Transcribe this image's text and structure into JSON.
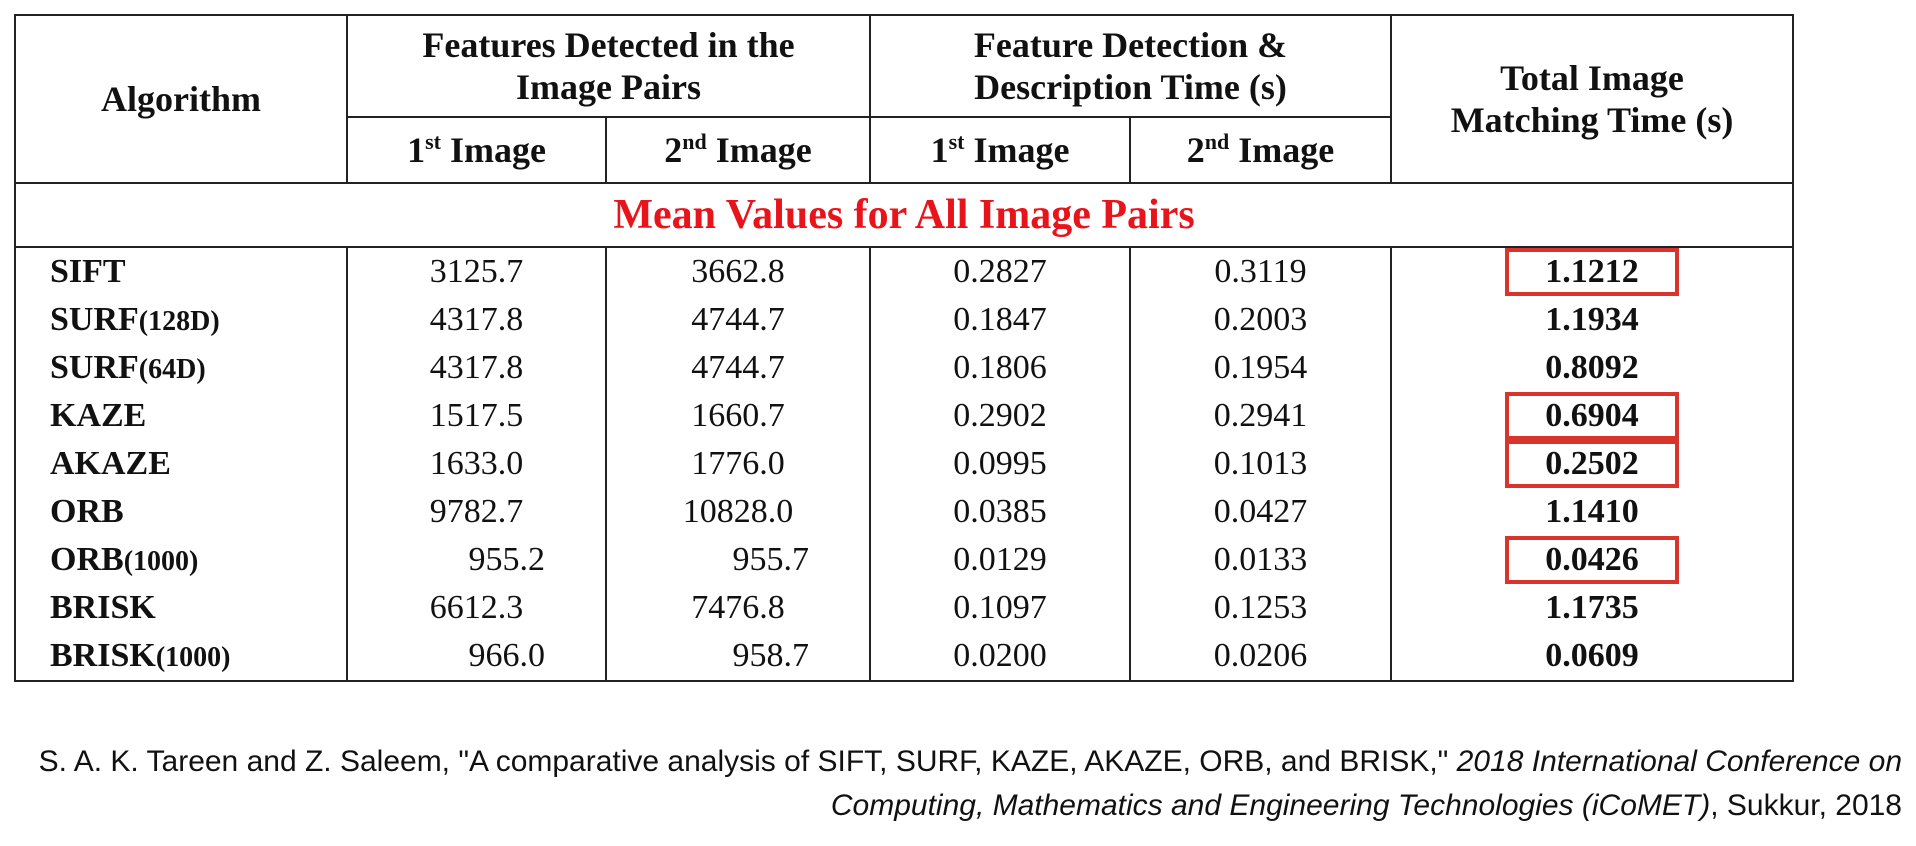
{
  "table": {
    "headers": {
      "algorithm": "Algorithm",
      "features_group": "Features Detected in the Image Pairs",
      "time_group": "Feature Detection & Description Time (s)",
      "total": "Total Image Matching Time (s)",
      "sub_1_num": "1",
      "sub_1_sup": "st",
      "sub_2_num": "2",
      "sub_2_sup": "nd",
      "sub_label": " Image"
    },
    "section_label": "Mean Values for All Image Pairs",
    "rows": [
      {
        "name": "SIFT",
        "suffix": "",
        "f1": "3125.7",
        "f2": "3662.8",
        "t1": "0.2827",
        "t2": "0.3119",
        "total": "1.1212",
        "highlight": true
      },
      {
        "name": "SURF",
        "suffix": "(128D)",
        "f1": "4317.8",
        "f2": "4744.7",
        "t1": "0.1847",
        "t2": "0.2003",
        "total": "1.1934",
        "highlight": false
      },
      {
        "name": "SURF",
        "suffix": "(64D)",
        "f1": "4317.8",
        "f2": "4744.7",
        "t1": "0.1806",
        "t2": "0.1954",
        "total": "0.8092",
        "highlight": false
      },
      {
        "name": "KAZE",
        "suffix": "",
        "f1": "1517.5",
        "f2": "1660.7",
        "t1": "0.2902",
        "t2": "0.2941",
        "total": "0.6904",
        "highlight": true
      },
      {
        "name": "AKAZE",
        "suffix": "",
        "f1": "1633.0",
        "f2": "1776.0",
        "t1": "0.0995",
        "t2": "0.1013",
        "total": "0.2502",
        "highlight": true
      },
      {
        "name": "ORB",
        "suffix": "",
        "f1": "9782.7",
        "f2": "10828.0",
        "t1": "0.0385",
        "t2": "0.0427",
        "total": "1.1410",
        "highlight": false
      },
      {
        "name": "ORB",
        "suffix": "(1000)",
        "f1": "955.2",
        "f2": "955.7",
        "t1": "0.0129",
        "t2": "0.0133",
        "total": "0.0426",
        "highlight": true
      },
      {
        "name": "BRISK",
        "suffix": "",
        "f1": "6612.3",
        "f2": "7476.8",
        "t1": "0.1097",
        "t2": "0.1253",
        "total": "1.1735",
        "highlight": false
      },
      {
        "name": "BRISK",
        "suffix": "(1000)",
        "f1": "966.0",
        "f2": "958.7",
        "t1": "0.0200",
        "t2": "0.0206",
        "total": "0.0609",
        "highlight": false
      }
    ],
    "colors": {
      "section": "#e8141c",
      "highlight_box": "#d9342b"
    }
  },
  "citation": {
    "text_before": "S. A. K. Tareen and Z. Saleem, \"A comparative analysis of SIFT, SURF, KAZE, AKAZE, ORB, and BRISK,\" ",
    "venue": "2018 International Conference on Computing, Mathematics and Engineering Technologies (iCoMET)",
    "text_after": ", Sukkur, 2018"
  }
}
